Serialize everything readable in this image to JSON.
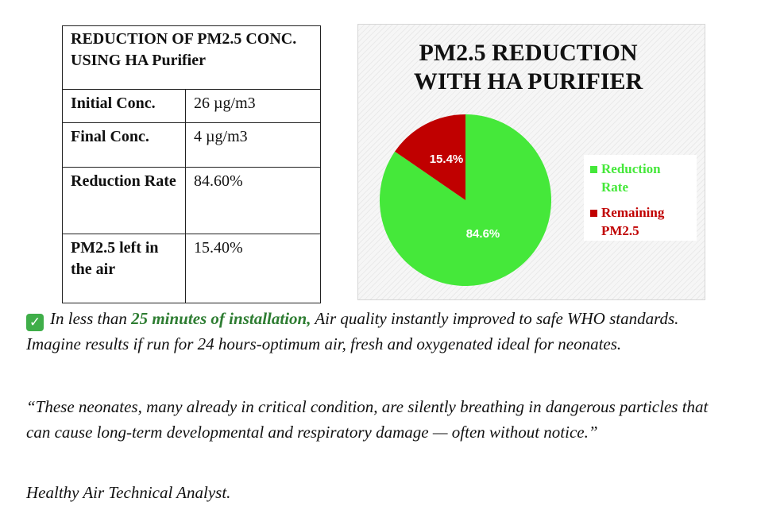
{
  "table": {
    "header": "REDUCTION OF PM2.5 CONC. USING HA Purifier",
    "rows": [
      {
        "label": "Initial Conc.",
        "value": "26 µg/m3"
      },
      {
        "label": "Final Conc.",
        "value": "4 µg/m3"
      },
      {
        "label": "Reduction Rate",
        "value": "84.60%"
      },
      {
        "label": "PM2.5 left in the air",
        "value": "15.40%"
      }
    ]
  },
  "chart_data": {
    "type": "pie",
    "title": "PM2.5 REDUCTION\nWITH HA PURIFIER",
    "slices": [
      {
        "name": "Reduction Rate",
        "value": 84.6,
        "label": "84.6%",
        "color": "#45e83a"
      },
      {
        "name": "Remaining PM2.5",
        "value": 15.4,
        "label": "15.4%",
        "color": "#c00000"
      }
    ],
    "legend": "right",
    "legend_items": [
      {
        "text": "Reduction\nRate",
        "color": "#45e83a"
      },
      {
        "text": "Remaining\nPM2.5",
        "color": "#c00000"
      }
    ]
  },
  "text": {
    "checkmark": "✓",
    "p1_before": "In less than ",
    "p1_highlight": "25 minutes of installation,",
    "p1_after": " Air quality instantly improved to safe WHO standards. Imagine results if run for 24 hours-optimum air, fresh and oxygenated ideal for neonates.",
    "p2": "“These neonates, many already in critical condition, are silently breathing in dangerous particles that can cause long-term developmental and respiratory damage — often without notice.”",
    "p3": "Healthy Air Technical Analyst."
  },
  "colors": {
    "highlight": "#2e7d32",
    "check_bg": "#3fae49"
  }
}
